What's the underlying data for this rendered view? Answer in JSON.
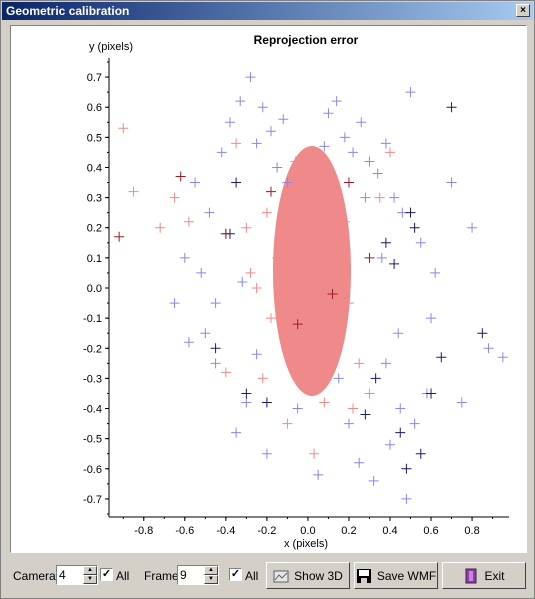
{
  "window": {
    "title": "Geometric calibration",
    "close_label": "×"
  },
  "chart_data": {
    "type": "scatter",
    "title": "Reprojection error",
    "xlabel": "x (pixels)",
    "ylabel": "y (pixels)",
    "xlim": [
      -0.95,
      0.98
    ],
    "ylim": [
      -0.75,
      0.75
    ],
    "xticks": [
      -0.8,
      -0.6,
      -0.4,
      -0.2,
      0.0,
      0.2,
      0.4,
      0.6,
      0.8
    ],
    "xtick_labels": [
      "-0.8",
      "-0.6",
      "-0.4",
      "-0.2",
      "0.0",
      "0.2",
      "0.4",
      "0.6",
      "0.8"
    ],
    "yticks": [
      0.7,
      0.6,
      0.5,
      0.4,
      0.3,
      0.2,
      0.1,
      0.0,
      -0.1,
      -0.2,
      -0.3,
      -0.4,
      -0.5,
      -0.6,
      -0.7
    ],
    "ytick_labels": [
      "0.7",
      "0.6",
      "0.5",
      "0.4",
      "0.3",
      "0.2",
      "0.1",
      "0.0",
      "-0.1",
      "-0.2",
      "-0.3",
      "-0.4",
      "-0.5",
      "-0.6",
      "-0.7"
    ],
    "marker": "plus",
    "series": [
      {
        "color": "#8888ee",
        "x": [
          -0.55,
          -0.48,
          -0.42,
          -0.38,
          -0.33,
          -0.28,
          -0.25,
          -0.22,
          -0.18,
          -0.15,
          -0.12,
          0.1,
          0.14,
          0.18,
          0.22,
          0.26,
          0.3,
          0.34,
          0.38,
          0.42,
          0.46,
          0.5,
          -0.5,
          -0.45,
          0.55,
          0.6,
          0.7,
          0.8,
          0.88,
          0.95,
          -0.65,
          -0.6,
          -0.58,
          0.45,
          0.52,
          0.58,
          -0.35,
          -0.2,
          0.05,
          0.25,
          0.4,
          -0.3,
          0.32,
          0.48,
          -0.45,
          -0.1,
          0.15,
          0.36,
          -0.25,
          0.62,
          0.28,
          -0.4,
          0.2,
          -0.05,
          0.44,
          0.75,
          -0.52,
          0.08,
          -0.32,
          0.38
        ],
        "y": [
          0.35,
          0.25,
          0.45,
          0.55,
          0.62,
          0.7,
          0.48,
          0.6,
          0.52,
          0.4,
          0.56,
          0.58,
          0.62,
          0.5,
          0.45,
          0.55,
          0.42,
          0.38,
          0.48,
          0.3,
          0.25,
          0.65,
          -0.15,
          -0.25,
          0.15,
          -0.1,
          0.35,
          0.2,
          -0.2,
          -0.23,
          -0.05,
          0.1,
          -0.18,
          -0.4,
          -0.45,
          -0.35,
          -0.48,
          -0.55,
          -0.62,
          -0.58,
          -0.52,
          -0.38,
          -0.64,
          -0.7,
          -0.05,
          0.35,
          -0.3,
          0.1,
          -0.22,
          0.05,
          0.3,
          0.18,
          -0.45,
          -0.4,
          -0.15,
          -0.38,
          0.05,
          0.47,
          0.02,
          -0.25
        ]
      },
      {
        "color": "#f08a8a",
        "x": [
          -0.2,
          -0.15,
          -0.1,
          -0.05,
          0.0,
          0.05,
          0.1,
          0.15,
          -0.18,
          -0.12,
          0.02,
          0.08,
          0.12,
          -0.08,
          -0.02,
          0.04,
          -0.25,
          0.2,
          -0.3,
          0.25,
          -0.22,
          0.18,
          -0.65,
          -0.58,
          -0.72,
          -0.85,
          -0.9,
          -0.35,
          0.4,
          -0.1,
          0.0,
          0.08,
          -0.06,
          0.3,
          -0.4,
          0.35,
          -0.28,
          0.22,
          0.03,
          -0.14
        ],
        "y": [
          0.25,
          0.1,
          -0.05,
          0.3,
          0.0,
          -0.2,
          0.15,
          0.05,
          -0.1,
          0.2,
          -0.3,
          0.28,
          -0.15,
          -0.25,
          0.35,
          0.1,
          0.0,
          -0.05,
          0.2,
          -0.25,
          -0.3,
          0.22,
          0.3,
          0.22,
          0.2,
          0.32,
          0.53,
          0.48,
          0.45,
          -0.45,
          0.4,
          -0.38,
          0.42,
          -0.35,
          -0.28,
          0.3,
          0.05,
          -0.4,
          -0.55,
          0.12
        ]
      },
      {
        "color": "#1a1a6e",
        "x": [
          0.7,
          0.85,
          0.5,
          0.48,
          -0.35,
          -0.45,
          0.55,
          0.6,
          0.65,
          -0.3,
          0.42,
          0.38,
          0.28,
          -0.2,
          0.45,
          0.52,
          -0.38,
          0.33
        ],
        "y": [
          0.6,
          -0.15,
          0.25,
          -0.6,
          0.35,
          -0.2,
          -0.55,
          -0.35,
          -0.23,
          -0.35,
          0.08,
          0.15,
          -0.42,
          -0.38,
          -0.48,
          0.2,
          0.18,
          -0.3
        ]
      },
      {
        "color": "#a01828",
        "x": [
          -0.62,
          -0.92,
          -0.4,
          -0.18,
          0.12,
          0.3,
          -0.05,
          0.2
        ],
        "y": [
          0.37,
          0.17,
          0.18,
          0.32,
          -0.02,
          0.1,
          -0.12,
          0.35
        ]
      }
    ]
  },
  "toolbar": {
    "camera_label": "Camera:",
    "camera_value": "4",
    "camera_all_label": "All",
    "camera_all_checked": "✓",
    "frame_label": "Frame:",
    "frame_value": "9",
    "frame_all_label": "All",
    "frame_all_checked": "✓",
    "show3d_label": "Show 3D",
    "savewmf_label": "Save WMF",
    "exit_label": "Exit"
  }
}
